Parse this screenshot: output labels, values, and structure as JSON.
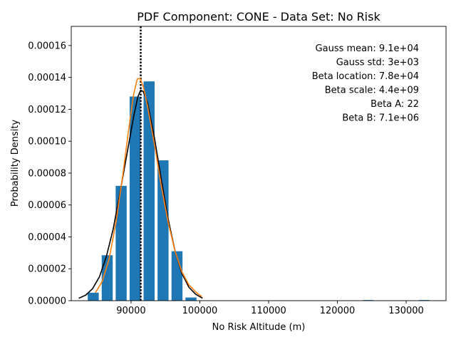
{
  "chart_data": {
    "type": "bar",
    "title": "PDF Component: CONE - Data Set: No Risk",
    "xlabel": "No Risk Altitude (m)",
    "ylabel": "Probability Density",
    "xlim": [
      81300,
      135800
    ],
    "ylim": [
      0,
      0.000172
    ],
    "x_ticks": [
      90000,
      100000,
      110000,
      120000,
      130000
    ],
    "x_tick_labels": [
      "90000",
      "100000",
      "110000",
      "120000",
      "130000"
    ],
    "y_ticks": [
      0,
      2e-05,
      4e-05,
      6e-05,
      8e-05,
      0.0001,
      0.00012,
      0.00014,
      0.00016
    ],
    "y_tick_labels": [
      "0.00000",
      "0.00002",
      "0.00004",
      "0.00006",
      "0.00008",
      "0.00010",
      "0.00012",
      "0.00014",
      "0.00016"
    ],
    "histogram": {
      "color": "#1f77b4",
      "bin_width": 2030,
      "bar_width": 1600,
      "bins": [
        {
          "x": 84500,
          "value": 5e-06
        },
        {
          "x": 86530,
          "value": 2.85e-05
        },
        {
          "x": 88560,
          "value": 7.2e-05
        },
        {
          "x": 90590,
          "value": 0.000128
        },
        {
          "x": 92620,
          "value": 0.0001375
        },
        {
          "x": 94650,
          "value": 8.8e-05
        },
        {
          "x": 96680,
          "value": 3.1e-05
        },
        {
          "x": 98710,
          "value": 2e-06
        },
        {
          "x": 124500,
          "value": 4e-07
        },
        {
          "x": 132620,
          "value": 4e-07
        }
      ]
    },
    "vline": {
      "x": 91400,
      "style": "dotted",
      "color": "#000000"
    },
    "gauss_curve": {
      "color": "#000000",
      "points": [
        [
          82400,
          1.5e-06
        ],
        [
          83400,
          3.5e-06
        ],
        [
          84400,
          7.5e-06
        ],
        [
          85400,
          1.5e-05
        ],
        [
          86400,
          2.75e-05
        ],
        [
          87400,
          4.5e-05
        ],
        [
          88400,
          6.8e-05
        ],
        [
          89400,
          9.2e-05
        ],
        [
          90400,
          0.000116
        ],
        [
          91000,
          0.000128
        ],
        [
          91400,
          0.000132
        ],
        [
          91800,
          0.000131
        ],
        [
          92400,
          0.000124
        ],
        [
          93400,
          0.000102
        ],
        [
          94400,
          7.6e-05
        ],
        [
          95400,
          5.1e-05
        ],
        [
          96400,
          3.1e-05
        ],
        [
          97400,
          1.7e-05
        ],
        [
          98400,
          8.5e-06
        ],
        [
          99400,
          4e-06
        ],
        [
          100400,
          1.5e-06
        ]
      ]
    },
    "beta_curve": {
      "color": "#ff7f0e",
      "points": [
        [
          84800,
          5e-06
        ],
        [
          85800,
          1.2e-05
        ],
        [
          86800,
          2.6e-05
        ],
        [
          87800,
          4.9e-05
        ],
        [
          88800,
          7.9e-05
        ],
        [
          89800,
          0.000112
        ],
        [
          90400,
          0.00013
        ],
        [
          90900,
          0.000139
        ],
        [
          91300,
          0.0001395
        ],
        [
          91800,
          0.000134
        ],
        [
          92400,
          0.000122
        ],
        [
          93400,
          9.8e-05
        ],
        [
          94400,
          7.2e-05
        ],
        [
          95400,
          4.9e-05
        ],
        [
          96400,
          3.1e-05
        ],
        [
          97400,
          1.8e-05
        ],
        [
          98400,
          1e-05
        ],
        [
          99400,
          5.5e-06
        ],
        [
          100300,
          2.5e-06
        ]
      ]
    },
    "annotations": [
      "Gauss mean: 9.1e+04",
      "Gauss std: 3e+03",
      "Beta location: 7.8e+04",
      "Beta scale: 4.4e+09",
      "Beta A: 22",
      "Beta B: 7.1e+06"
    ]
  }
}
